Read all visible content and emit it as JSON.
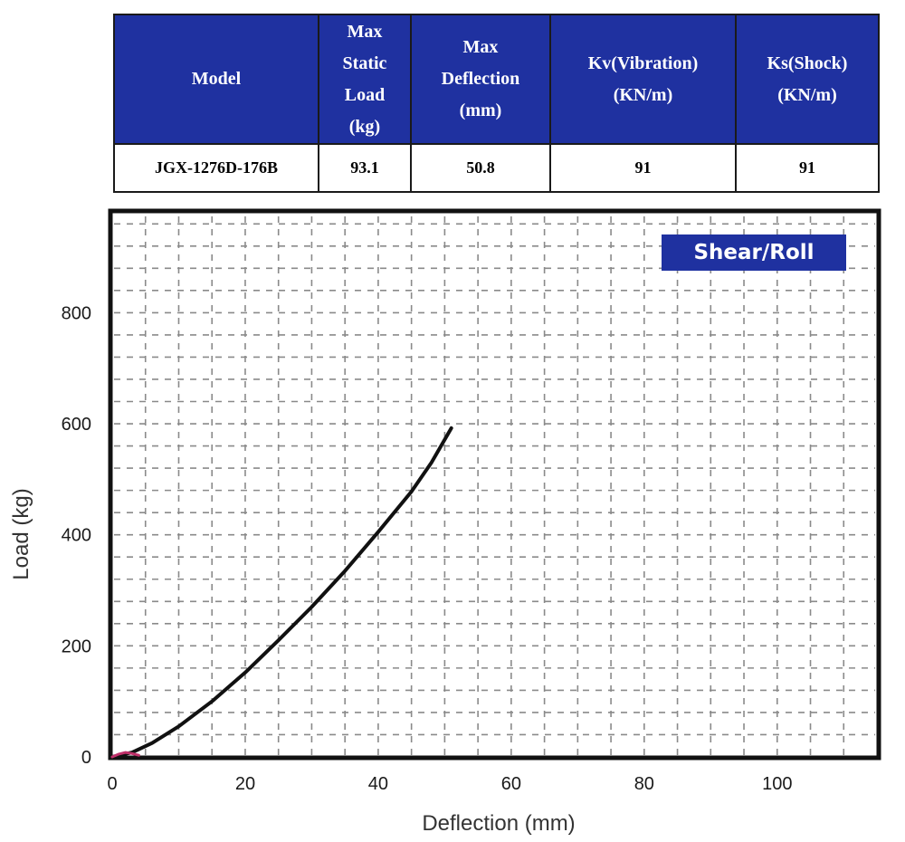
{
  "table": {
    "header_color": "#1f31a0",
    "headers": [
      "Model",
      "Max\nStatic\nLoad\n(kg)",
      "Max\nDeflection\n(mm)",
      "Kv(Vibration)\n(KN/m)",
      "Ks(Shock)\n(KN/m)"
    ],
    "row": [
      "JGX-1276D-176B",
      "93.1",
      "50.8",
      "91",
      "91"
    ]
  },
  "badge": {
    "label": "Shear/Roll",
    "color": "#1f31a0"
  },
  "chart_data": {
    "type": "line",
    "xlabel": "Deflection (mm)",
    "ylabel": "Load (kg)",
    "xlim": [
      0,
      115
    ],
    "ylim": [
      0,
      980
    ],
    "xticks": [
      0,
      20,
      40,
      60,
      80,
      100
    ],
    "yticks": [
      0,
      200,
      400,
      600,
      800
    ],
    "grid": "dashed",
    "series": [
      {
        "color": "#111111",
        "x": [
          0,
          3,
          6,
          10,
          15,
          20,
          25,
          30,
          35,
          40,
          45,
          48,
          51
        ],
        "y": [
          0,
          8,
          25,
          55,
          100,
          152,
          210,
          270,
          335,
          405,
          478,
          530,
          592
        ]
      },
      {
        "color": "#c0306a",
        "x": [
          0,
          1,
          2,
          3,
          4
        ],
        "y": [
          0,
          5,
          8,
          6,
          3
        ]
      }
    ]
  }
}
